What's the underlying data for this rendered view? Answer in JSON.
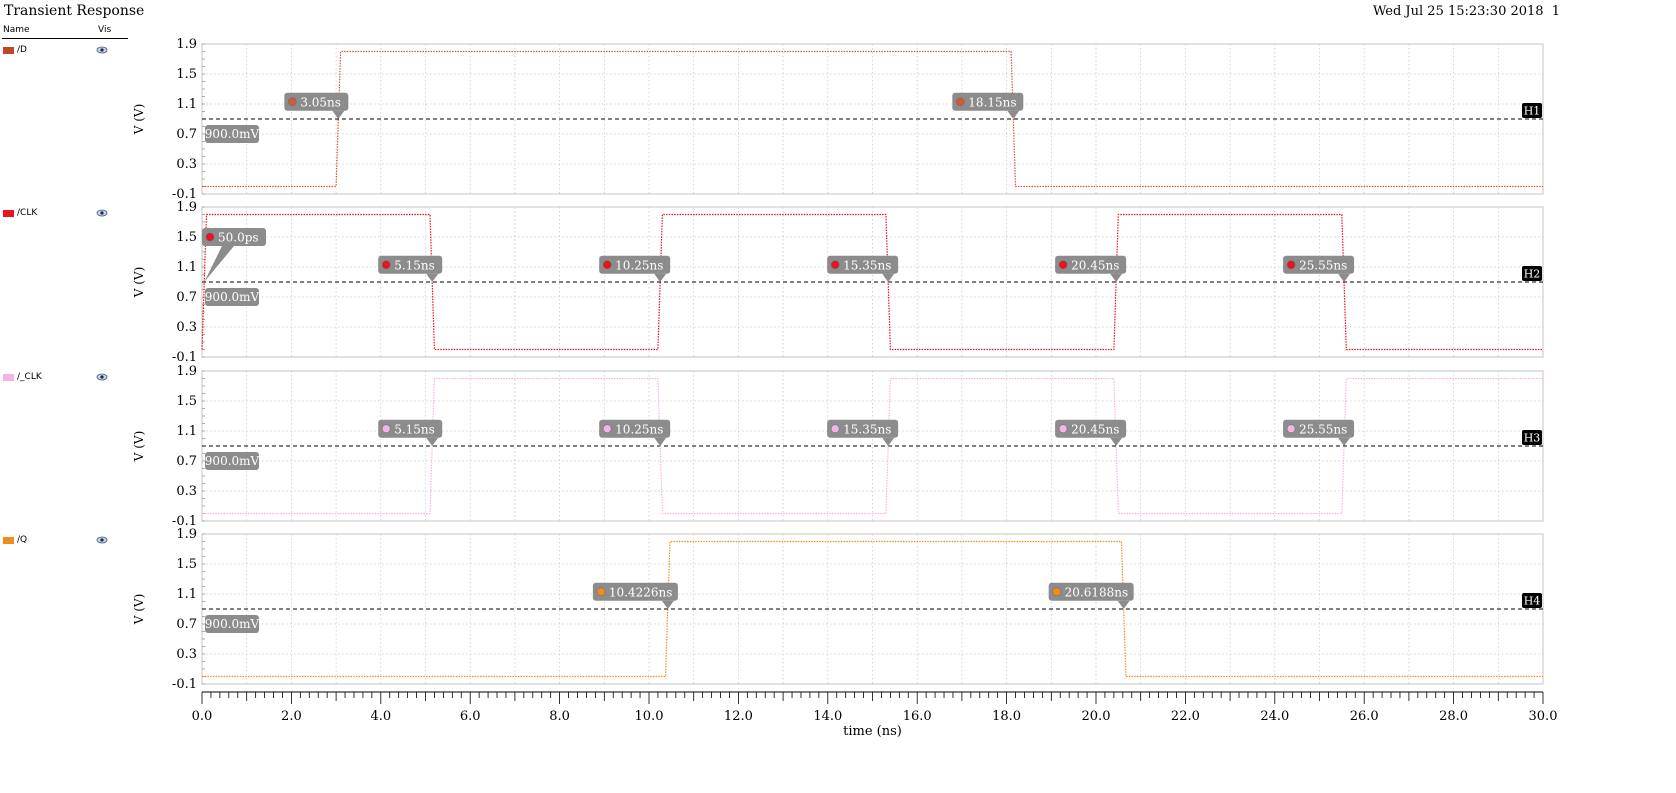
{
  "window": {
    "title": "Transient Response",
    "timestamp": "Wed Jul 25 15:23:30 2018",
    "subwindow": "1"
  },
  "legend": {
    "name_header": "Name",
    "vis_header": "Vis",
    "visibility_icon": "eye-icon"
  },
  "chart_data": {
    "type": "line",
    "xlabel": "time (ns)",
    "xlim": [
      0,
      30
    ],
    "x_ticks": [
      "0.0",
      "2.0",
      "4.0",
      "6.0",
      "8.0",
      "10.0",
      "12.0",
      "14.0",
      "16.0",
      "18.0",
      "20.0",
      "22.0",
      "24.0",
      "26.0",
      "28.0",
      "30.0"
    ],
    "grid": true,
    "strips": [
      {
        "name": "/D",
        "color": "#d05a3c",
        "ylabel": "V (V)",
        "ylim": [
          -0.1,
          1.9
        ],
        "y_ticks": [
          "1.9",
          "1.5",
          "1.1",
          "0.7",
          "0.3",
          "-0.1"
        ],
        "points": [
          [
            0,
            0
          ],
          [
            3.0,
            0
          ],
          [
            3.1,
            1.8
          ],
          [
            18.1,
            1.8
          ],
          [
            18.2,
            0
          ],
          [
            30,
            0
          ]
        ],
        "hline": {
          "label": "H1",
          "value": 0.9,
          "value_label": "900.0mV"
        },
        "markers": [
          {
            "x": 3.05,
            "label": "3.05ns"
          },
          {
            "x": 18.15,
            "label": "18.15ns"
          }
        ]
      },
      {
        "name": "/CLK",
        "color": "#e8141e",
        "ylabel": "V (V)",
        "ylim": [
          -0.1,
          1.9
        ],
        "y_ticks": [
          "1.9",
          "1.5",
          "1.1",
          "0.7",
          "0.3",
          "-0.1"
        ],
        "points": [
          [
            0,
            0
          ],
          [
            0.1,
            1.8
          ],
          [
            5.1,
            1.8
          ],
          [
            5.2,
            0
          ],
          [
            10.2,
            0
          ],
          [
            10.3,
            1.8
          ],
          [
            15.3,
            1.8
          ],
          [
            15.4,
            0
          ],
          [
            20.4,
            0
          ],
          [
            20.5,
            1.8
          ],
          [
            25.5,
            1.8
          ],
          [
            25.6,
            0
          ],
          [
            30,
            0
          ]
        ],
        "hline": {
          "label": "H2",
          "value": 0.9,
          "value_label": "900.0mV"
        },
        "markers": [
          {
            "x": 0.05,
            "label": "50.0ps",
            "high": true
          },
          {
            "x": 5.15,
            "label": "5.15ns"
          },
          {
            "x": 10.25,
            "label": "10.25ns"
          },
          {
            "x": 15.35,
            "label": "15.35ns"
          },
          {
            "x": 20.45,
            "label": "20.45ns"
          },
          {
            "x": 25.55,
            "label": "25.55ns"
          }
        ]
      },
      {
        "name": "/_CLK",
        "color": "#f6b2e6",
        "ylabel": "V (V)",
        "ylim": [
          -0.1,
          1.9
        ],
        "y_ticks": [
          "1.9",
          "1.5",
          "1.1",
          "0.7",
          "0.3",
          "-0.1"
        ],
        "points": [
          [
            0,
            0
          ],
          [
            5.1,
            0
          ],
          [
            5.2,
            1.8
          ],
          [
            10.2,
            1.8
          ],
          [
            10.3,
            0
          ],
          [
            15.3,
            0
          ],
          [
            15.4,
            1.8
          ],
          [
            20.4,
            1.8
          ],
          [
            20.5,
            0
          ],
          [
            25.5,
            0
          ],
          [
            25.6,
            1.8
          ],
          [
            30,
            1.8
          ]
        ],
        "hline": {
          "label": "H3",
          "value": 0.9,
          "value_label": "900.0mV"
        },
        "markers": [
          {
            "x": 5.15,
            "label": "5.15ns"
          },
          {
            "x": 10.25,
            "label": "10.25ns"
          },
          {
            "x": 15.35,
            "label": "15.35ns"
          },
          {
            "x": 20.45,
            "label": "20.45ns"
          },
          {
            "x": 25.55,
            "label": "25.55ns"
          }
        ]
      },
      {
        "name": "/Q",
        "color": "#f08c1e",
        "ylabel": "V (V)",
        "ylim": [
          -0.1,
          1.9
        ],
        "y_ticks": [
          "1.9",
          "1.5",
          "1.1",
          "0.7",
          "0.3",
          "-0.1"
        ],
        "points": [
          [
            0,
            0
          ],
          [
            10.37,
            0
          ],
          [
            10.47,
            1.8
          ],
          [
            20.57,
            1.8
          ],
          [
            20.67,
            0
          ],
          [
            30,
            0
          ]
        ],
        "hline": {
          "label": "H4",
          "value": 0.9,
          "value_label": "900.0mV"
        },
        "markers": [
          {
            "x": 10.4226,
            "label": "10.4226ns"
          },
          {
            "x": 20.6188,
            "label": "20.6188ns"
          }
        ]
      }
    ]
  }
}
